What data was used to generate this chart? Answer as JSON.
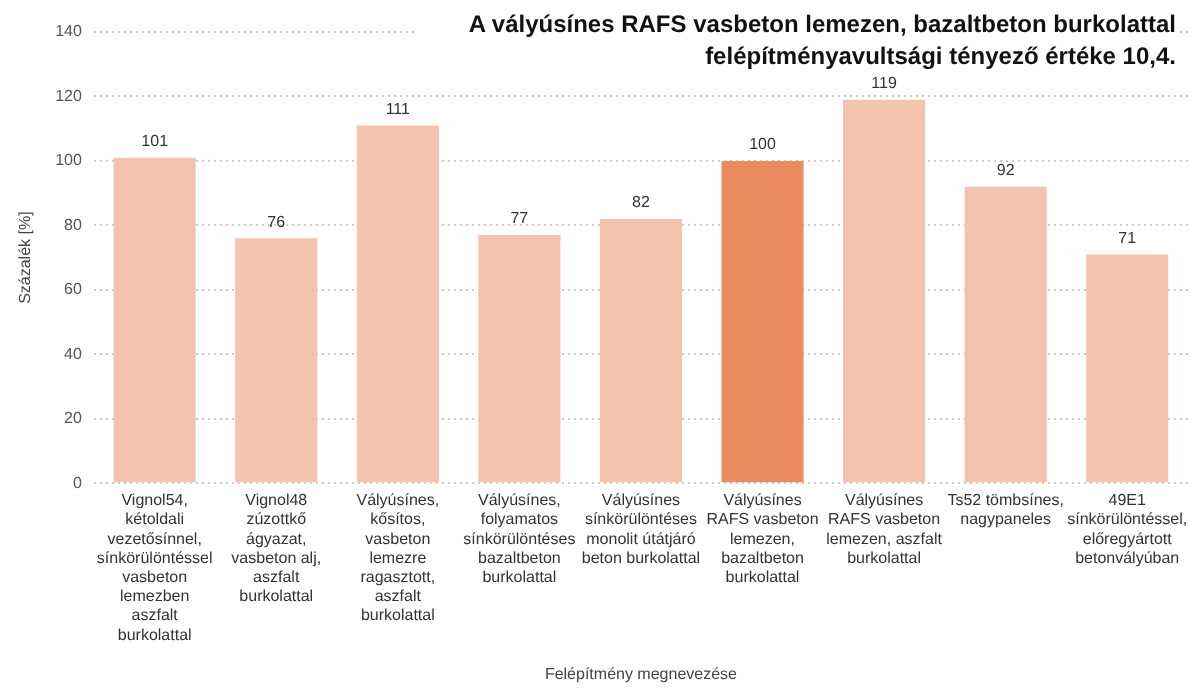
{
  "chart_data": {
    "type": "bar",
    "title": "A vályúsínes RAFS vasbeton lemezen, bazaltbeton  burkolattal felépítményavultsági tényező értéke 10,4.",
    "xlabel": "Felépítmény megnevezése",
    "ylabel": "Százalék [%]",
    "categories": [
      "Vignol54, kétoldali vezetősínnel, sínkörülöntéssel vasbeton lemezben aszfalt burkolattal",
      "Vignol48 zúzottkő ágyazat, vasbeton alj, aszfalt burkolattal",
      "Vályúsínes, kősítos, vasbeton lemezre ragasztott, aszfalt burkolattal",
      "Vályúsínes, folyamatos sínkörülöntéses bazaltbeton burkolattal",
      "Vályúsínes sínkörülöntéses monolit útátjáró beton burkolattal",
      "Vályúsínes RAFS vasbeton lemezen, bazaltbeton burkolattal",
      "Vályúsínes RAFS vasbeton lemezen, aszfalt burkolattal",
      "Ts52 tömbsínes, nagypaneles",
      "49E1 sínkörülöntéssel, előregyártott betonvályúban"
    ],
    "values": [
      101,
      76,
      111,
      77,
      82,
      100,
      119,
      92,
      71
    ],
    "colors": [
      "#f4c3ae",
      "#f4c3ae",
      "#f4c3ae",
      "#f4c3ae",
      "#f4c3ae",
      "#ec8b5f",
      "#f4c3ae",
      "#f4c3ae",
      "#f4c3ae"
    ],
    "ylim": [
      0,
      140
    ],
    "yticks": [
      0,
      20,
      40,
      60,
      80,
      100,
      120,
      140
    ],
    "grid": "y",
    "legend": false,
    "data_labels": true
  }
}
